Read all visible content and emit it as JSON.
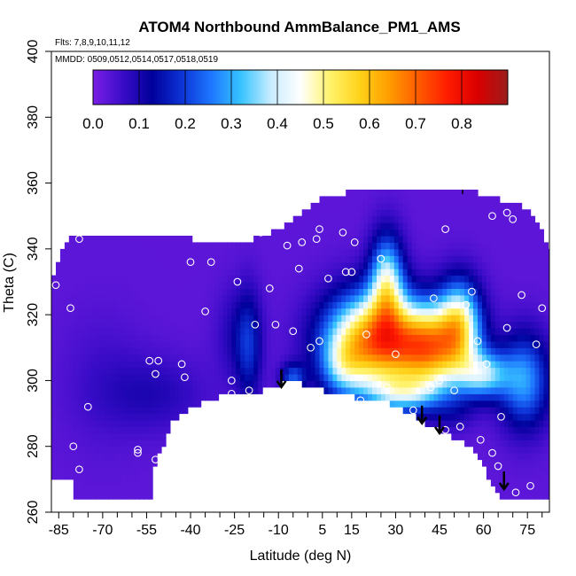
{
  "chart_data": {
    "type": "heatmap",
    "title": "ATOM4 Northbound AmmBalance_PM1_AMS",
    "annotations": {
      "flights": "Flts: 7,8,9,10,11,12",
      "dates": "MMDD: 0509,0512,0514,0517,0518,0519"
    },
    "xlabel": "Latitude (deg N)",
    "ylabel": "Theta (C)",
    "xlim": [
      -87.5,
      82.5
    ],
    "ylim": [
      260,
      400
    ],
    "x_ticks": [
      -85,
      -70,
      -55,
      -40,
      -25,
      -10,
      5,
      15,
      30,
      45,
      60,
      75
    ],
    "x_minor_ticks": [
      -80,
      -75,
      -65,
      -60,
      -50,
      -45,
      -35,
      -30,
      -20,
      -15,
      -5,
      0,
      10,
      20,
      25,
      35,
      40,
      50,
      55,
      65,
      70,
      80
    ],
    "y_ticks": [
      260,
      280,
      300,
      320,
      340,
      360,
      380,
      400
    ],
    "colorbar": {
      "ticks": [
        0.0,
        0.1,
        0.2,
        0.3,
        0.4,
        0.5,
        0.6,
        0.7,
        0.8
      ],
      "tick_labels": [
        "0.0",
        "0.1",
        "0.2",
        "0.3",
        "0.4",
        "0.5",
        "0.6",
        "0.7",
        "0.8"
      ],
      "range": [
        0.0,
        0.9
      ],
      "palette": [
        "#7b1fe6",
        "#3a0cc8",
        "#00009b",
        "#0d33d6",
        "#1e78ff",
        "#38c4ff",
        "#c8ecff",
        "#ffffff",
        "#fff36b",
        "#ffd21a",
        "#ff9c00",
        "#ff5a00",
        "#ff1a00",
        "#d90000",
        "#9b1c1c"
      ]
    },
    "surface_points": [
      {
        "lat": -52,
        "theta": 275,
        "value": 0.1
      },
      {
        "lat": -46,
        "theta": 288,
        "value": 0.1
      },
      {
        "lat": -40,
        "theta": 292,
        "value": 0.08
      },
      {
        "lat": -28,
        "theta": 296,
        "value": 0.06
      },
      {
        "lat": -15,
        "theta": 297,
        "value": 0.12
      },
      {
        "lat": -6,
        "theta": 300,
        "value": 0.35
      },
      {
        "lat": 10,
        "theta": 296,
        "value": 0.4
      },
      {
        "lat": 28,
        "theta": 293,
        "value": 0.4
      },
      {
        "lat": 45,
        "theta": 285,
        "value": 0.18
      },
      {
        "lat": 56,
        "theta": 280,
        "value": 0.25
      },
      {
        "lat": 66,
        "theta": 264,
        "value": 0.2
      },
      {
        "lat": 80,
        "theta": 265,
        "value": 0.45
      }
    ],
    "arrows": [
      {
        "lat": -9,
        "theta": 298
      },
      {
        "lat": 39,
        "theta": 287
      },
      {
        "lat": 45,
        "theta": 284
      },
      {
        "lat": 67,
        "theta": 267
      }
    ],
    "sample_points": [
      {
        "lat": -86,
        "theta": 329
      },
      {
        "lat": -81,
        "theta": 322
      },
      {
        "lat": -78,
        "theta": 343
      },
      {
        "lat": -80,
        "theta": 280
      },
      {
        "lat": -78,
        "theta": 273
      },
      {
        "lat": -75,
        "theta": 292
      },
      {
        "lat": -58,
        "theta": 279
      },
      {
        "lat": -58,
        "theta": 278
      },
      {
        "lat": -54,
        "theta": 306
      },
      {
        "lat": -52,
        "theta": 302
      },
      {
        "lat": -51,
        "theta": 306
      },
      {
        "lat": -52,
        "theta": 276
      },
      {
        "lat": -43,
        "theta": 305
      },
      {
        "lat": -42,
        "theta": 301
      },
      {
        "lat": -40,
        "theta": 336
      },
      {
        "lat": -35,
        "theta": 321
      },
      {
        "lat": -33,
        "theta": 336
      },
      {
        "lat": -26,
        "theta": 300
      },
      {
        "lat": -26,
        "theta": 296
      },
      {
        "lat": -24,
        "theta": 330
      },
      {
        "lat": -20,
        "theta": 297
      },
      {
        "lat": -18,
        "theta": 317
      },
      {
        "lat": -16,
        "theta": 345
      },
      {
        "lat": -13,
        "theta": 328
      },
      {
        "lat": -11,
        "theta": 317
      },
      {
        "lat": -7,
        "theta": 341
      },
      {
        "lat": -5,
        "theta": 315
      },
      {
        "lat": -3,
        "theta": 334
      },
      {
        "lat": -2,
        "theta": 342
      },
      {
        "lat": 1,
        "theta": 310
      },
      {
        "lat": 3,
        "theta": 343
      },
      {
        "lat": 4,
        "theta": 346
      },
      {
        "lat": 4,
        "theta": 312
      },
      {
        "lat": 7,
        "theta": 331
      },
      {
        "lat": 12,
        "theta": 345
      },
      {
        "lat": 13,
        "theta": 333
      },
      {
        "lat": 15,
        "theta": 333
      },
      {
        "lat": 16,
        "theta": 342
      },
      {
        "lat": 18,
        "theta": 294
      },
      {
        "lat": 20,
        "theta": 314
      },
      {
        "lat": 25,
        "theta": 337
      },
      {
        "lat": 27,
        "theta": 298
      },
      {
        "lat": 30,
        "theta": 308
      },
      {
        "lat": 36,
        "theta": 291
      },
      {
        "lat": 42,
        "theta": 298
      },
      {
        "lat": 43,
        "theta": 325
      },
      {
        "lat": 45,
        "theta": 300
      },
      {
        "lat": 47,
        "theta": 346
      },
      {
        "lat": 47,
        "theta": 285
      },
      {
        "lat": 50,
        "theta": 297
      },
      {
        "lat": 52,
        "theta": 286
      },
      {
        "lat": 54,
        "theta": 323
      },
      {
        "lat": 56,
        "theta": 327
      },
      {
        "lat": 58,
        "theta": 312
      },
      {
        "lat": 59,
        "theta": 282
      },
      {
        "lat": 61,
        "theta": 305
      },
      {
        "lat": 63,
        "theta": 350
      },
      {
        "lat": 63,
        "theta": 278
      },
      {
        "lat": 65,
        "theta": 274
      },
      {
        "lat": 66,
        "theta": 289
      },
      {
        "lat": 68,
        "theta": 316
      },
      {
        "lat": 68,
        "theta": 351
      },
      {
        "lat": 70,
        "theta": 349
      },
      {
        "lat": 71,
        "theta": 266
      },
      {
        "lat": 73,
        "theta": 326
      },
      {
        "lat": 75,
        "theta": 354
      },
      {
        "lat": 76,
        "theta": 268
      },
      {
        "lat": 78,
        "theta": 311
      },
      {
        "lat": 80,
        "theta": 322
      }
    ],
    "grid": false,
    "legend_position": "top (inside plot)"
  }
}
